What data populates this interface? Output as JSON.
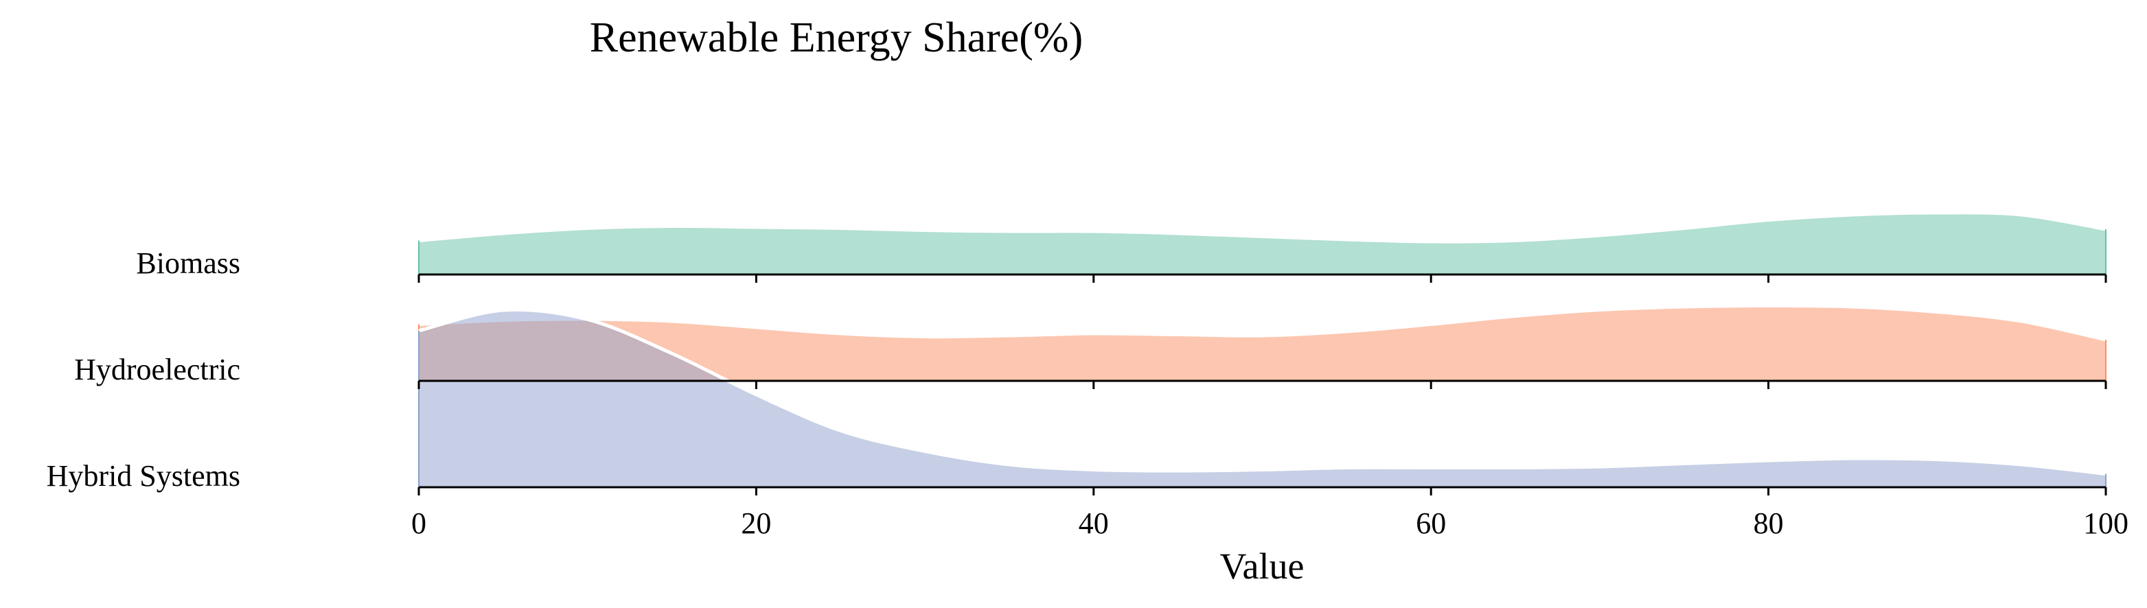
{
  "chart_data": {
    "type": "area",
    "subtype": "ridgeline",
    "title": "Renewable Energy Share(%)",
    "xlabel": "Value",
    "ylabel": "",
    "xlim": [
      0,
      100
    ],
    "xticks": [
      0,
      20,
      40,
      60,
      80,
      100
    ],
    "x": [
      0,
      5,
      10,
      15,
      20,
      25,
      30,
      35,
      40,
      45,
      50,
      55,
      60,
      65,
      70,
      75,
      80,
      85,
      90,
      95,
      100
    ],
    "series": [
      {
        "name": "Biomass",
        "color": "#66c2a5",
        "values": [
          0.33,
          0.4,
          0.45,
          0.47,
          0.46,
          0.45,
          0.43,
          0.42,
          0.42,
          0.4,
          0.37,
          0.34,
          0.32,
          0.33,
          0.38,
          0.45,
          0.53,
          0.58,
          0.6,
          0.58,
          0.44
        ]
      },
      {
        "name": "Hydroelectric",
        "color": "#fc8d62",
        "values": [
          0.55,
          0.59,
          0.6,
          0.58,
          0.52,
          0.46,
          0.43,
          0.44,
          0.46,
          0.45,
          0.44,
          0.48,
          0.55,
          0.63,
          0.69,
          0.72,
          0.73,
          0.72,
          0.67,
          0.58,
          0.4
        ]
      },
      {
        "name": "Hybrid Systems",
        "color": "#8da0cb",
        "values": [
          1.52,
          1.72,
          1.63,
          1.3,
          0.9,
          0.55,
          0.35,
          0.22,
          0.17,
          0.16,
          0.17,
          0.19,
          0.19,
          0.19,
          0.2,
          0.23,
          0.26,
          0.28,
          0.27,
          0.22,
          0.13
        ]
      }
    ]
  }
}
